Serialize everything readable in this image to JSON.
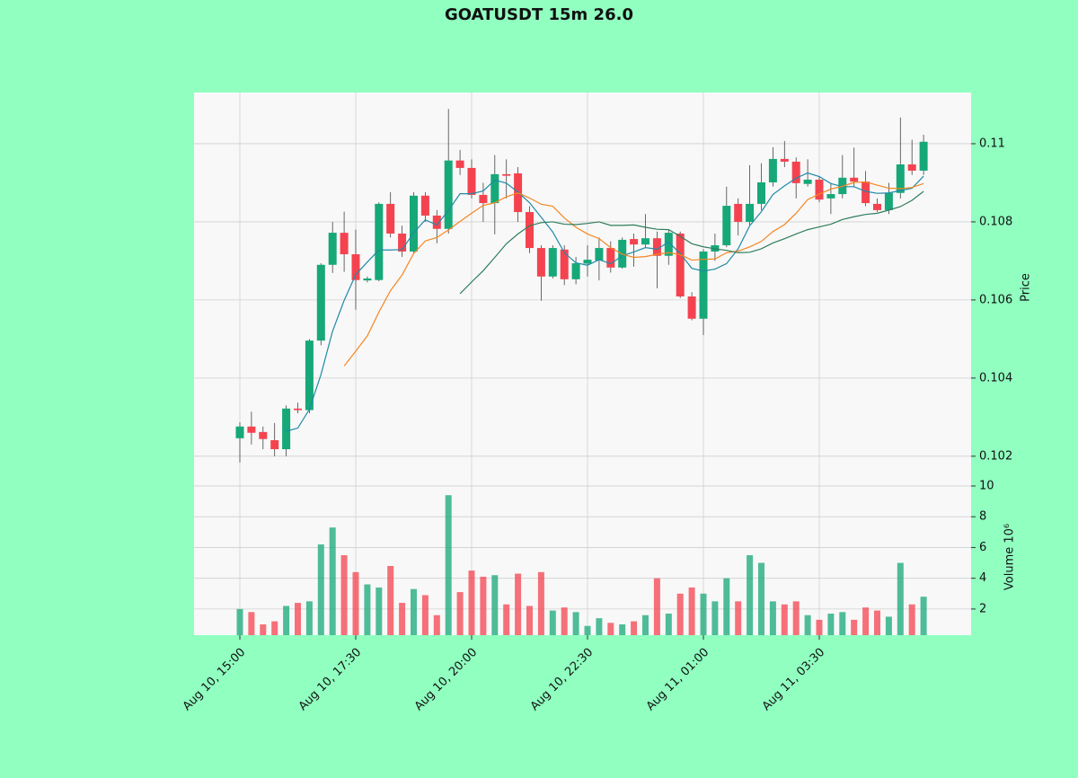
{
  "chart_data": {
    "type": "candlestick",
    "title": "GOATUSDT 15m 26.0",
    "ylabel": "Price",
    "y2label": "Volume  10⁶",
    "up_color": "#16a878",
    "down_color": "#f4434f",
    "grid": true,
    "xticks": [
      {
        "value": 0,
        "label": "Aug 10, 15:00"
      },
      {
        "value": 10,
        "label": "Aug 10, 17:30"
      },
      {
        "value": 20,
        "label": "Aug 10, 20:00"
      },
      {
        "value": 30,
        "label": "Aug 10, 22:30"
      },
      {
        "value": 40,
        "label": "Aug 11, 01:00"
      },
      {
        "value": 50,
        "label": "Aug 11, 03:30"
      }
    ],
    "ylim": [
      0.10149,
      0.11131
    ],
    "yticks": [
      0.102,
      0.104,
      0.106,
      0.108,
      0.11
    ],
    "y2lim": [
      0.3,
      10.64
    ],
    "y2ticks": [
      2,
      4,
      6,
      8,
      10
    ],
    "open": [
      0.10246,
      0.10276,
      0.10262,
      0.10241,
      0.10218,
      0.10322,
      0.10318,
      0.10496,
      0.1069,
      0.10772,
      0.10717,
      0.1065,
      0.10651,
      0.10846,
      0.1077,
      0.10724,
      0.10867,
      0.10816,
      0.10782,
      0.10957,
      0.10938,
      0.10869,
      0.10848,
      0.10922,
      0.10924,
      0.10825,
      0.10733,
      0.1066,
      0.10729,
      0.10653,
      0.10693,
      0.10701,
      0.10733,
      0.10683,
      0.10756,
      0.10742,
      0.10758,
      0.10713,
      0.1077,
      0.10609,
      0.10552,
      0.10724,
      0.1074,
      0.10846,
      0.108,
      0.10846,
      0.10901,
      0.10961,
      0.10954,
      0.10897,
      0.10908,
      0.1086,
      0.10871,
      0.10913,
      0.10903,
      0.10846,
      0.1083,
      0.10874,
      0.10947,
      0.10931
    ],
    "high": [
      0.10287,
      0.10314,
      0.10276,
      0.10285,
      0.1033,
      0.10337,
      0.105,
      0.10694,
      0.108,
      0.10826,
      0.1078,
      0.1066,
      0.1085,
      0.10876,
      0.1079,
      0.10876,
      0.10876,
      0.1083,
      0.11089,
      0.10984,
      0.1096,
      0.109,
      0.10971,
      0.1096,
      0.1094,
      0.1084,
      0.1074,
      0.1074,
      0.1074,
      0.1071,
      0.1074,
      0.1076,
      0.1075,
      0.1076,
      0.1077,
      0.1082,
      0.10775,
      0.1078,
      0.10775,
      0.1062,
      0.1073,
      0.1077,
      0.1089,
      0.1086,
      0.10945,
      0.1095,
      0.10991,
      0.11007,
      0.10965,
      0.1096,
      0.10915,
      0.109,
      0.10971,
      0.1099,
      0.1093,
      0.1086,
      0.109,
      0.11067,
      0.1101,
      0.11023
    ],
    "low": [
      0.10184,
      0.1023,
      0.10218,
      0.102,
      0.102,
      0.1031,
      0.1031,
      0.10484,
      0.10669,
      0.10672,
      0.10575,
      0.10645,
      0.10648,
      0.1076,
      0.1071,
      0.1072,
      0.108,
      0.10745,
      0.1077,
      0.1092,
      0.1086,
      0.108,
      0.10768,
      0.1086,
      0.108,
      0.1072,
      0.10598,
      0.10655,
      0.10638,
      0.1064,
      0.1066,
      0.1065,
      0.1067,
      0.1068,
      0.10685,
      0.10735,
      0.1063,
      0.1069,
      0.10605,
      0.10548,
      0.1051,
      0.107,
      0.10735,
      0.10765,
      0.1079,
      0.1083,
      0.1089,
      0.1094,
      0.1086,
      0.1089,
      0.1085,
      0.1082,
      0.1086,
      0.1089,
      0.1084,
      0.10825,
      0.1082,
      0.1086,
      0.1092,
      0.1092
    ],
    "close": [
      0.10276,
      0.1026,
      0.10244,
      0.10218,
      0.10322,
      0.10318,
      0.10496,
      0.1069,
      0.10772,
      0.10717,
      0.10651,
      0.10655,
      0.10846,
      0.1077,
      0.10724,
      0.10867,
      0.10816,
      0.10782,
      0.10957,
      0.10938,
      0.10869,
      0.10848,
      0.10922,
      0.10918,
      0.10825,
      0.10733,
      0.1066,
      0.10733,
      0.10653,
      0.10694,
      0.10703,
      0.10733,
      0.10683,
      0.10754,
      0.10742,
      0.10758,
      0.10713,
      0.10772,
      0.10609,
      0.10552,
      0.10724,
      0.1074,
      0.10841,
      0.108,
      0.10846,
      0.10901,
      0.10961,
      0.10954,
      0.10899,
      0.10908,
      0.10857,
      0.10871,
      0.10913,
      0.10903,
      0.10848,
      0.1083,
      0.10874,
      0.10947,
      0.10931,
      0.11005
    ],
    "volume": [
      2.0,
      1.8,
      1.0,
      1.2,
      2.2,
      2.4,
      2.5,
      6.2,
      7.3,
      5.5,
      4.4,
      3.6,
      3.4,
      4.8,
      2.4,
      3.3,
      2.9,
      1.6,
      9.4,
      3.1,
      4.5,
      4.1,
      4.2,
      2.3,
      4.3,
      2.2,
      4.4,
      1.9,
      2.1,
      1.8,
      0.9,
      1.4,
      1.1,
      1.0,
      1.2,
      1.6,
      4.0,
      1.7,
      3.0,
      3.4,
      3.0,
      2.5,
      4.0,
      2.5,
      5.5,
      5.0,
      2.5,
      2.3,
      2.5,
      1.6,
      1.3,
      1.7,
      1.8,
      1.3,
      2.1,
      1.9,
      1.5,
      5.0,
      2.3,
      2.8
    ],
    "ma": [
      {
        "color": "#1f8aa6",
        "values": [
          null,
          null,
          null,
          null,
          0.10264,
          0.10272,
          0.1032,
          0.10409,
          0.1052,
          0.10599,
          0.10665,
          0.10697,
          0.10728,
          0.10728,
          0.10729,
          0.10772,
          0.10805,
          0.10792,
          0.10829,
          0.10872,
          0.10872,
          0.10879,
          0.10907,
          0.10899,
          0.10876,
          0.10849,
          0.10812,
          0.10774,
          0.10721,
          0.10695,
          0.10689,
          0.10703,
          0.10693,
          0.10713,
          0.10723,
          0.10734,
          0.1073,
          0.10748,
          0.10719,
          0.10681,
          0.10674,
          0.10679,
          0.10693,
          0.10731,
          0.1079,
          0.10826,
          0.1087,
          0.10892,
          0.10912,
          0.10925,
          0.10916,
          0.10898,
          0.1089,
          0.1089,
          0.10878,
          0.10873,
          0.10874,
          0.1088,
          0.10886,
          0.10917
        ]
      },
      {
        "color": "#f5861f",
        "values": [
          null,
          null,
          null,
          null,
          null,
          null,
          null,
          null,
          null,
          0.10431,
          0.10469,
          0.10508,
          0.10569,
          0.10624,
          0.10664,
          0.10719,
          0.10751,
          0.1076,
          0.10779,
          0.10801,
          0.10822,
          0.10842,
          0.10849,
          0.10864,
          0.10874,
          0.10861,
          0.10845,
          0.1084,
          0.1081,
          0.10786,
          0.10769,
          0.10757,
          0.10734,
          0.10717,
          0.10709,
          0.10711,
          0.10717,
          0.10721,
          0.10716,
          0.10702,
          0.10704,
          0.10705,
          0.10721,
          0.10725,
          0.10736,
          0.1075,
          0.10775,
          0.10793,
          0.10822,
          0.10857,
          0.10871,
          0.10884,
          0.10891,
          0.10901,
          0.10902,
          0.10894,
          0.10886,
          0.10885,
          0.10888,
          0.10898
        ]
      },
      {
        "color": "#2e7d5b",
        "values": [
          null,
          null,
          null,
          null,
          null,
          null,
          null,
          null,
          null,
          null,
          null,
          null,
          null,
          null,
          null,
          null,
          null,
          null,
          null,
          0.10616,
          0.10646,
          0.10675,
          0.10709,
          0.10744,
          0.10769,
          0.1079,
          0.10798,
          0.108,
          0.10794,
          0.10793,
          0.10796,
          0.108,
          0.10791,
          0.10791,
          0.10792,
          0.10786,
          0.10781,
          0.1078,
          0.10763,
          0.10744,
          0.10736,
          0.10731,
          0.10727,
          0.10721,
          0.10722,
          0.10731,
          0.10746,
          0.10757,
          0.10769,
          0.1078,
          0.10787,
          0.10794,
          0.10806,
          0.10813,
          0.10819,
          0.10822,
          0.1083,
          0.10839,
          0.10855,
          0.10878
        ]
      }
    ]
  }
}
